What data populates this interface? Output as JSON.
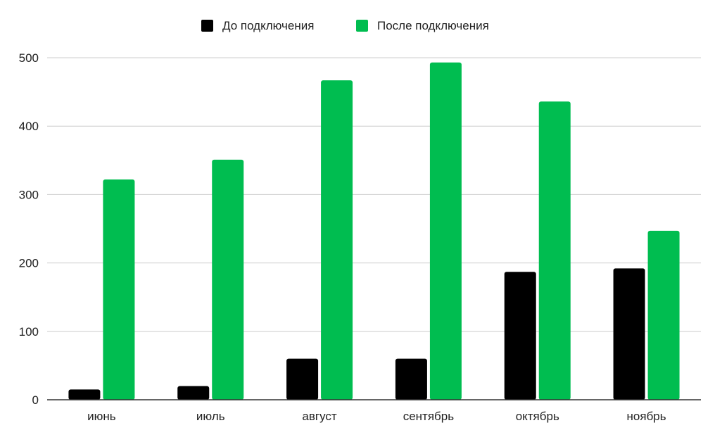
{
  "chart_data": {
    "type": "bar",
    "title": "",
    "xlabel": "",
    "ylabel": "",
    "categories": [
      "июнь",
      "июль",
      "август",
      "сентябрь",
      "октябрь",
      "ноябрь"
    ],
    "series": [
      {
        "name": "До подключения",
        "color": "#000000",
        "values": [
          15,
          20,
          60,
          60,
          187,
          192
        ]
      },
      {
        "name": "После подключения",
        "color": "#00bd50",
        "values": [
          322,
          351,
          467,
          493,
          436,
          247
        ]
      }
    ],
    "ylim": [
      0,
      500
    ],
    "yticks": [
      0,
      100,
      200,
      300,
      400,
      500
    ],
    "grid": true,
    "legend_position": "top-center"
  }
}
